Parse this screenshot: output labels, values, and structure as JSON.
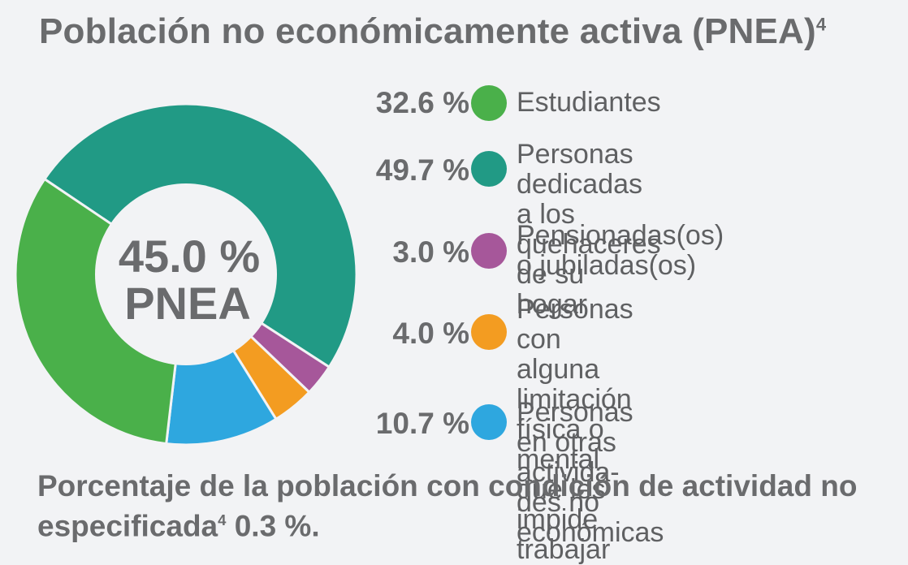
{
  "title": "Población no económicamente activa (PNEA)",
  "title_sup": "4",
  "center": {
    "line1": "45.0 %",
    "line2": "PNEA"
  },
  "chart_data": {
    "type": "pie",
    "title": "Población no económicamente activa (PNEA)",
    "donut": true,
    "total_label": "45.0 % PNEA",
    "slices": [
      {
        "label": "Personas dedicadas a los quehaceres de su hogar",
        "value": 49.7,
        "display": "49.7 %",
        "color": "#219a85"
      },
      {
        "label": "Pensionadas(os) o jubiladas(os)",
        "value": 3.0,
        "display": "3.0 %",
        "color": "#a6579a"
      },
      {
        "label": "Personas con alguna limitación física o mental que les impide trabajar",
        "value": 4.0,
        "display": "4.0 %",
        "color": "#f39c21"
      },
      {
        "label": "Personas en otras actividades no económicas",
        "value": 10.7,
        "display": "10.7 %",
        "color": "#2ea7df"
      },
      {
        "label": "Estudiantes",
        "value": 32.6,
        "display": "32.6 %",
        "color": "#4ab04a"
      }
    ]
  },
  "legend": [
    {
      "pct": "32.6 %",
      "label": "Estudiantes",
      "color": "#4ab04a"
    },
    {
      "pct": "49.7 %",
      "label": "Personas dedicadas a los\nquehaceres de su hogar",
      "color": "#219a85"
    },
    {
      "pct": "3.0 %",
      "label": "Pensionadas(os)\no jubiladas(os)",
      "color": "#a6579a"
    },
    {
      "pct": "4.0 %",
      "label": "Personas con alguna\nlimitación física o mental\nque les impide trabajar",
      "color": "#f39c21"
    },
    {
      "pct": "10.7 %",
      "label": "Personas en otras activida-\ndes no económicas",
      "color": "#2ea7df"
    }
  ],
  "footnote": {
    "text_before": "Porcentaje de la población con condición de actividad no especificada",
    "sup": "4",
    "text_after": " 0.3 %."
  }
}
